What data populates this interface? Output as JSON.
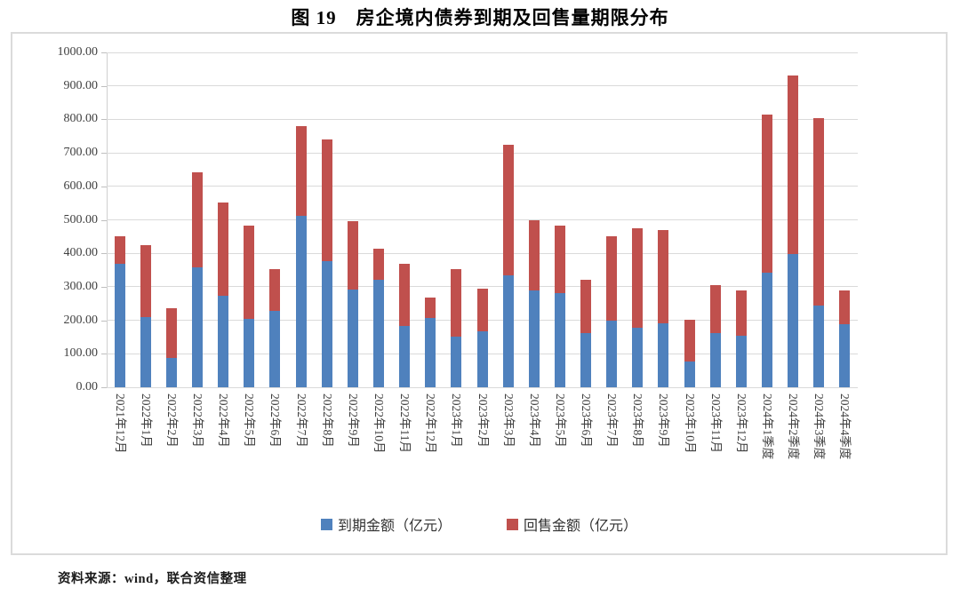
{
  "title": "图 19　房企境内债券到期及回售量期限分布",
  "source_note": "资料来源：wind，联合资信整理",
  "colors": {
    "maturity_blue": "#4f81bd",
    "putback_red": "#c0504d",
    "gridline": "#dadada",
    "chart_border": "#dbdbdb"
  },
  "chart_data": {
    "type": "bar",
    "stacked": true,
    "grid": "horizontal",
    "legend_position": "bottom",
    "ylim": [
      0,
      1000
    ],
    "y_tick_step": 100,
    "y_tick_labels": [
      "0.00",
      "100.00",
      "200.00",
      "300.00",
      "400.00",
      "500.00",
      "600.00",
      "700.00",
      "800.00",
      "900.00",
      "1000.00"
    ],
    "categories": [
      "2021年12月",
      "2022年1月",
      "2022年2月",
      "2022年3月",
      "2022年4月",
      "2022年5月",
      "2022年6月",
      "2022年7月",
      "2022年8月",
      "2022年9月",
      "2022年10月",
      "2022年11月",
      "2022年12月",
      "2023年1月",
      "2023年2月",
      "2023年3月",
      "2023年4月",
      "2023年5月",
      "2023年6月",
      "2023年7月",
      "2023年8月",
      "2023年9月",
      "2023年10月",
      "2023年11月",
      "2023年12月",
      "2024年1季度",
      "2024年2季度",
      "2024年3季度",
      "2024年4季度"
    ],
    "series": [
      {
        "name": "到期金额（亿元）",
        "color": "#4f81bd",
        "values": [
          370,
          210,
          88,
          357,
          273,
          205,
          227,
          511,
          378,
          291,
          321,
          183,
          207,
          150,
          166,
          333,
          288,
          281,
          162,
          198,
          178,
          192,
          77,
          161,
          154,
          342,
          398,
          244,
          189
        ]
      },
      {
        "name": "回售金额（亿元）",
        "color": "#c0504d",
        "values": [
          80,
          215,
          147,
          285,
          280,
          277,
          126,
          270,
          362,
          204,
          93,
          187,
          61,
          203,
          128,
          390,
          210,
          202,
          159,
          253,
          296,
          278,
          125,
          143,
          134,
          473,
          532,
          560,
          99
        ]
      }
    ]
  }
}
